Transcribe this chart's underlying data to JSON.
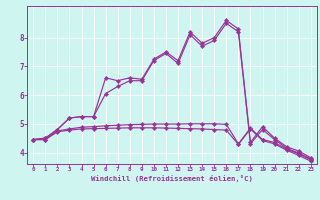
{
  "xlabel": "Windchill (Refroidissement éolien,°C)",
  "background_color": "#cff5f0",
  "line_color": "#993399",
  "grid_color": "#ffffff",
  "xlim": [
    -0.5,
    23.5
  ],
  "ylim": [
    3.6,
    9.1
  ],
  "yticks": [
    4,
    5,
    6,
    7,
    8
  ],
  "xticks": [
    0,
    1,
    2,
    3,
    4,
    5,
    6,
    7,
    8,
    9,
    10,
    11,
    12,
    13,
    14,
    15,
    16,
    17,
    18,
    19,
    20,
    21,
    22,
    23
  ],
  "curve1_x": [
    0,
    1,
    2,
    3,
    4,
    5,
    6,
    7,
    8,
    9,
    10,
    11,
    12,
    13,
    14,
    15,
    16,
    17,
    18,
    19,
    20,
    21,
    22,
    23
  ],
  "curve1_y": [
    4.45,
    4.5,
    4.8,
    5.2,
    5.25,
    5.25,
    6.6,
    6.5,
    6.6,
    6.55,
    7.25,
    7.5,
    7.2,
    8.2,
    7.8,
    8.0,
    8.6,
    8.3,
    4.35,
    4.9,
    4.5,
    4.2,
    4.05,
    3.82
  ],
  "curve2_x": [
    0,
    1,
    2,
    3,
    4,
    5,
    6,
    7,
    8,
    9,
    10,
    11,
    12,
    13,
    14,
    15,
    16,
    17,
    18,
    19,
    20,
    21,
    22,
    23
  ],
  "curve2_y": [
    4.45,
    4.5,
    4.8,
    5.2,
    5.25,
    5.25,
    6.05,
    6.3,
    6.5,
    6.5,
    7.2,
    7.45,
    7.1,
    8.1,
    7.7,
    7.9,
    8.5,
    8.2,
    4.3,
    4.8,
    4.45,
    4.15,
    3.98,
    3.78
  ],
  "curve3_x": [
    0,
    1,
    2,
    3,
    4,
    5,
    6,
    7,
    8,
    9,
    10,
    11,
    12,
    13,
    14,
    15,
    16,
    17,
    18,
    19,
    20,
    21,
    22,
    23
  ],
  "curve3_y": [
    4.45,
    4.45,
    4.75,
    4.82,
    4.88,
    4.9,
    4.93,
    4.95,
    4.97,
    4.98,
    4.99,
    4.99,
    4.99,
    5.0,
    5.0,
    5.0,
    4.98,
    4.3,
    4.85,
    4.45,
    4.35,
    4.12,
    3.95,
    3.75
  ],
  "curve4_x": [
    0,
    1,
    2,
    3,
    4,
    5,
    6,
    7,
    8,
    9,
    10,
    11,
    12,
    13,
    14,
    15,
    16,
    17,
    18,
    19,
    20,
    21,
    22,
    23
  ],
  "curve4_y": [
    4.45,
    4.45,
    4.72,
    4.78,
    4.82,
    4.83,
    4.84,
    4.85,
    4.86,
    4.86,
    4.86,
    4.85,
    4.84,
    4.83,
    4.82,
    4.8,
    4.78,
    4.28,
    4.82,
    4.42,
    4.3,
    4.08,
    3.9,
    3.7
  ]
}
